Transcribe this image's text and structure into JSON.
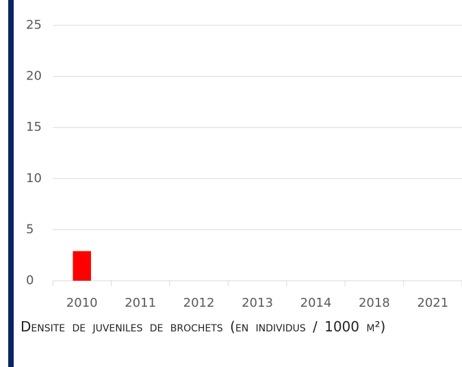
{
  "chart_data": {
    "type": "bar",
    "categories": [
      "2010",
      "2011",
      "2012",
      "2013",
      "2014",
      "2018",
      "2021"
    ],
    "values": [
      2.9,
      0,
      0,
      0,
      0,
      0,
      0
    ],
    "color": "#ff0000",
    "ylim": [
      0,
      25
    ],
    "yticks": [
      0,
      5,
      10,
      15,
      20,
      25
    ],
    "grid": true,
    "caption": "Densite de juveniles de brochets (en individus / 1000 m²)"
  }
}
